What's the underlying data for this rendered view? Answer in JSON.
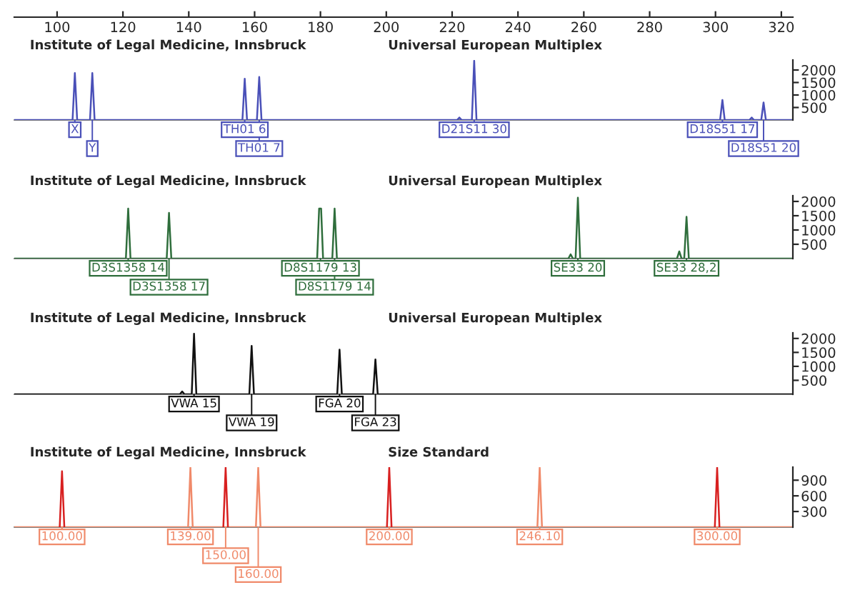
{
  "chart_data": [
    {
      "type": "line",
      "title": "Institute of Legal Medicine, Innsbruck",
      "subtitle": "Universal European Multiplex",
      "xlim": [
        87,
        323.5
      ],
      "xticks": [
        100,
        120,
        140,
        160,
        180,
        200,
        220,
        240,
        260,
        280,
        300,
        320
      ],
      "ylim": [
        0,
        2400
      ],
      "yticks": [
        500,
        1000,
        1500,
        2000
      ],
      "series": [
        {
          "color": "#4a50b8",
          "x": [
            87,
            104.7,
            105.4,
            106.1,
            110.0,
            110.7,
            111.4,
            156.3,
            157.0,
            157.7,
            160.7,
            161.4,
            162.1,
            221.5,
            222.2,
            222.9,
            226.0,
            226.7,
            227.4,
            301.4,
            302.1,
            302.8,
            310.3,
            311.0,
            311.7,
            313.9,
            314.6,
            315.3,
            323.5
          ],
          "values": [
            0,
            0,
            1880,
            0,
            0,
            1880,
            0,
            0,
            1650,
            0,
            0,
            1720,
            0,
            0,
            100,
            0,
            0,
            2370,
            0,
            0,
            800,
            0,
            0,
            100,
            0,
            0,
            700,
            0,
            0
          ]
        }
      ],
      "annotations": [
        {
          "text": "X",
          "x": 105.4,
          "y": 0
        },
        {
          "text": "Y",
          "x": 110.7,
          "y": 0
        },
        {
          "text": "TH01 6",
          "x": 157.0,
          "y": 0
        },
        {
          "text": "TH01 7",
          "x": 161.4,
          "y": 0
        },
        {
          "text": "D21S11 30",
          "x": 226.7,
          "y": 0
        },
        {
          "text": "D18S51 17",
          "x": 302.1,
          "y": 0
        },
        {
          "text": "D18S51 20",
          "x": 314.6,
          "y": 0
        }
      ]
    },
    {
      "type": "line",
      "title": "Institute of Legal Medicine, Innsbruck",
      "subtitle": "Universal European Multiplex",
      "xlim": [
        87,
        323.5
      ],
      "ylim": [
        0,
        2200
      ],
      "yticks": [
        500,
        1000,
        1500,
        2000
      ],
      "tick_labels": "y",
      "series": [
        {
          "color": "#2f6e3c",
          "x": [
            87,
            120.9,
            121.6,
            122.3,
            133.3,
            134.0,
            134.7,
            179.0,
            179.6,
            180.2,
            180.8,
            183.6,
            184.3,
            185.0,
            255.3,
            256.0,
            256.7,
            257.5,
            258.2,
            258.9,
            288.3,
            289.0,
            289.7,
            290.5,
            291.2,
            291.9,
            323.5
          ],
          "values": [
            0,
            0,
            1750,
            0,
            0,
            1600,
            0,
            0,
            1750,
            1750,
            0,
            0,
            1750,
            0,
            0,
            150,
            0,
            0,
            2130,
            0,
            0,
            250,
            0,
            0,
            1460,
            0,
            0
          ]
        }
      ],
      "annotations": [
        {
          "text": "D3S1358 14",
          "x": 121.6,
          "y": 0
        },
        {
          "text": "D3S1358 17",
          "x": 134.0,
          "y": 0
        },
        {
          "text": "D8S1179 13",
          "x": 180.0,
          "y": 0
        },
        {
          "text": "D8S1179 14",
          "x": 184.3,
          "y": 0
        },
        {
          "text": "SE33 20",
          "x": 258.2,
          "y": 0
        },
        {
          "text": "SE33 28,2",
          "x": 291.2,
          "y": 0
        }
      ]
    },
    {
      "type": "line",
      "title": "Institute of Legal Medicine, Innsbruck",
      "subtitle": "Universal European Multiplex",
      "xlim": [
        87,
        323.5
      ],
      "ylim": [
        0,
        2200
      ],
      "yticks": [
        500,
        1000,
        1500,
        2000
      ],
      "tick_labels": "y",
      "series": [
        {
          "color": "#111111",
          "x": [
            87,
            137.3,
            138.0,
            138.7,
            140.9,
            141.6,
            142.3,
            158.4,
            159.1,
            159.8,
            185.1,
            185.8,
            186.5,
            196.0,
            196.7,
            197.4,
            323.5
          ],
          "values": [
            0,
            0,
            100,
            0,
            0,
            2170,
            0,
            0,
            1730,
            0,
            0,
            1600,
            0,
            0,
            1250,
            0,
            0
          ]
        }
      ],
      "annotations": [
        {
          "text": "VWA 15",
          "x": 141.6,
          "y": 0
        },
        {
          "text": "VWA 19",
          "x": 159.1,
          "y": 0
        },
        {
          "text": "FGA 20",
          "x": 185.8,
          "y": 0
        },
        {
          "text": "FGA 23",
          "x": 196.7,
          "y": 0
        }
      ]
    },
    {
      "type": "line",
      "title": "Institute of Legal Medicine, Innsbruck",
      "subtitle": "Size Standard",
      "xlim": [
        87,
        323.5
      ],
      "ylim": [
        0,
        1150
      ],
      "yticks": [
        300,
        600,
        900
      ],
      "tick_labels": "y",
      "series": [
        {
          "color": "#f08a6a",
          "x": [
            87,
            139.8,
            140.5,
            141.2,
            160.4,
            161.1,
            161.8,
            245.9,
            246.6,
            247.3,
            323.5
          ],
          "values": [
            0,
            0,
            1140,
            0,
            0,
            1140,
            0,
            0,
            1140,
            0,
            0
          ]
        },
        {
          "color": "#d82020",
          "x": [
            100.8,
            101.5,
            102.2,
            126,
            150.5,
            151.2,
            151.9,
            176,
            200.2,
            200.9,
            201.6,
            250,
            299.8,
            300.5,
            301.2
          ],
          "values": [
            0,
            1070,
            0,
            null,
            0,
            1140,
            0,
            null,
            0,
            1140,
            0,
            null,
            0,
            1140,
            0
          ]
        }
      ],
      "annotations": [
        {
          "text": "100.00",
          "x": 101.5,
          "y": 0
        },
        {
          "text": "139.00",
          "x": 140.5,
          "y": 0
        },
        {
          "text": "150.00",
          "x": 151.2,
          "y": 0
        },
        {
          "text": "160.00",
          "x": 161.1,
          "y": 0
        },
        {
          "text": "200.00",
          "x": 200.9,
          "y": 0
        },
        {
          "text": "246.10",
          "x": 246.6,
          "y": 0
        },
        {
          "text": "300.00",
          "x": 300.5,
          "y": 0
        }
      ]
    }
  ]
}
